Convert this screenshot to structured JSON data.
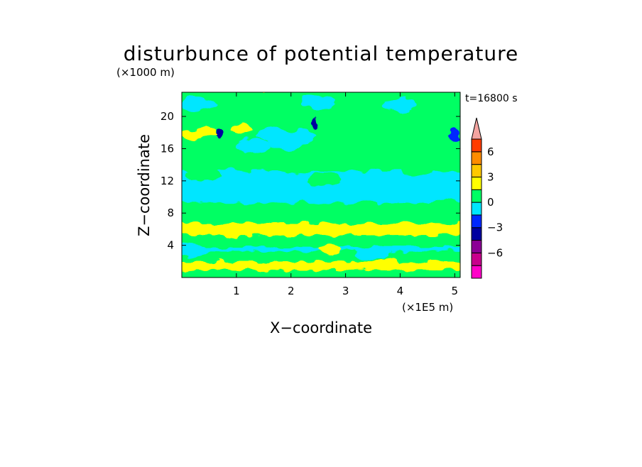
{
  "chart_data": {
    "type": "heatmap",
    "title": "disturbunce of potential temperature",
    "time_label": "t=16800 s",
    "xlabel": "X−coordinate",
    "ylabel": "Z−coordinate",
    "x_unit": "(×1E5 m)",
    "y_unit": "(×1000 m)",
    "xlim": [
      0,
      5.1
    ],
    "ylim": [
      0,
      23
    ],
    "x_ticks": [
      "1",
      "2",
      "3",
      "4",
      "5"
    ],
    "x_tick_values": [
      1,
      2,
      3,
      4,
      5
    ],
    "y_ticks": [
      "4",
      "8",
      "12",
      "16",
      "20"
    ],
    "y_tick_values": [
      4,
      8,
      12,
      16,
      20
    ],
    "colorbar": {
      "labels": [
        "6",
        "3",
        "0",
        "−3",
        "−6"
      ],
      "label_values": [
        6,
        3,
        0,
        -3,
        -6
      ],
      "levels": [
        -9,
        -7.5,
        -6,
        -4.5,
        -3,
        -1.5,
        0,
        1.5,
        3,
        4.5,
        6,
        9
      ],
      "colors": [
        "#ff00c8",
        "#c8008c",
        "#8c0096",
        "#0000a0",
        "#0028ff",
        "#00e6ff",
        "#00ff64",
        "#ffff00",
        "#ffc800",
        "#ff8c00",
        "#ff3c00",
        "#f4a4a0"
      ]
    },
    "bands": [
      {
        "z": [
          0,
          1.2
        ],
        "value": 1.0
      },
      {
        "z": [
          1.2,
          2.2
        ],
        "value": 1.8
      },
      {
        "z": [
          2.2,
          3.5
        ],
        "value": 0.9
      },
      {
        "z": [
          3.5,
          4.0
        ],
        "value": -0.3
      },
      {
        "z": [
          4.0,
          5.5
        ],
        "value": 0.8
      },
      {
        "z": [
          5.5,
          7.0
        ],
        "value": 1.7
      },
      {
        "z": [
          7.0,
          9.5
        ],
        "value": 0.9
      },
      {
        "z": [
          9.5,
          13.5
        ],
        "value": -0.5
      },
      {
        "z": [
          13.5,
          15.5
        ],
        "value": 0.6
      },
      {
        "z": [
          15.5,
          19.5
        ],
        "value": 0.8
      },
      {
        "z": [
          19.5,
          23.0
        ],
        "value": 0.3
      }
    ],
    "features": [
      {
        "x": 0.7,
        "z": 18.0,
        "value": -3.5
      },
      {
        "x": 2.45,
        "z": 19.2,
        "value": -3.5
      },
      {
        "x": 5.0,
        "z": 17.6,
        "value": -3.0
      },
      {
        "x": 1.7,
        "z": 17.8,
        "value": -1.0
      },
      {
        "x": 1.9,
        "z": 16.7,
        "value": -1.0
      },
      {
        "x": 2.15,
        "z": 17.5,
        "value": -1.0
      },
      {
        "x": 1.3,
        "z": 16.3,
        "value": -1.0
      },
      {
        "x": 0.2,
        "z": 17.8,
        "value": 2.0
      },
      {
        "x": 0.45,
        "z": 18.0,
        "value": 2.0
      },
      {
        "x": 1.1,
        "z": 18.5,
        "value": 2.0
      },
      {
        "x": 0.25,
        "z": 5.8,
        "value": 2.0
      },
      {
        "x": 0.85,
        "z": 5.5,
        "value": 2.0
      },
      {
        "x": 1.7,
        "z": 5.6,
        "value": 2.0
      },
      {
        "x": 2.7,
        "z": 3.5,
        "value": 2.0
      },
      {
        "x": 2.9,
        "z": 1.5,
        "value": 2.0
      },
      {
        "x": 1.5,
        "z": 1.3,
        "value": 2.0
      },
      {
        "x": 3.8,
        "z": 1.7,
        "value": 2.0
      },
      {
        "x": 4.7,
        "z": 1.4,
        "value": 2.0
      },
      {
        "x": 3.4,
        "z": 8.6,
        "value": 0.9
      },
      {
        "x": 4.2,
        "z": 8.4,
        "value": 0.9
      },
      {
        "x": 4.8,
        "z": 8.9,
        "value": 0.9
      },
      {
        "x": 2.6,
        "z": 12.2,
        "value": 0.8
      },
      {
        "x": 2.1,
        "z": 13.8,
        "value": 0.8
      },
      {
        "x": 0.4,
        "z": 12.8,
        "value": 0.8
      },
      {
        "x": 4.3,
        "z": 13.5,
        "value": 0.8
      },
      {
        "x": 3.7,
        "z": 12.0,
        "value": -0.4
      },
      {
        "x": 0.1,
        "z": 3.4,
        "value": -0.4
      },
      {
        "x": 3.5,
        "z": 3.0,
        "value": -0.4
      },
      {
        "x": 0.3,
        "z": 21.5,
        "value": -0.6
      },
      {
        "x": 2.5,
        "z": 21.8,
        "value": -0.6
      },
      {
        "x": 4.0,
        "z": 21.5,
        "value": -0.6
      }
    ]
  }
}
